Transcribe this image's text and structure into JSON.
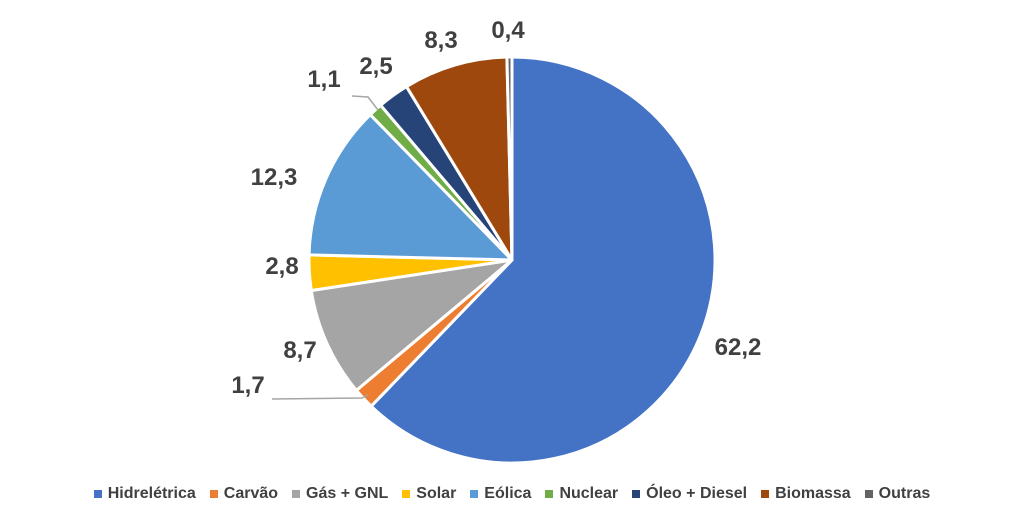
{
  "chart_data": {
    "type": "pie",
    "title": "",
    "decimal_separator": ",",
    "slices": [
      {
        "name": "Hidrelétrica",
        "value": 62.2,
        "label": "62,2",
        "color": "#4472C4"
      },
      {
        "name": "Carvão",
        "value": 1.7,
        "label": "1,7",
        "color": "#ED7D31"
      },
      {
        "name": "Gás + GNL",
        "value": 8.7,
        "label": "8,7",
        "color": "#A5A5A5"
      },
      {
        "name": "Solar",
        "value": 2.8,
        "label": "2,8",
        "color": "#FFC000"
      },
      {
        "name": "Eólica",
        "value": 12.3,
        "label": "12,3",
        "color": "#5B9BD5"
      },
      {
        "name": "Nuclear",
        "value": 1.1,
        "label": "1,1",
        "color": "#70AD47"
      },
      {
        "name": "Óleo + Diesel",
        "value": 2.5,
        "label": "2,5",
        "color": "#264478"
      },
      {
        "name": "Biomassa",
        "value": 8.3,
        "label": "8,3",
        "color": "#9E480E"
      },
      {
        "name": "Outras",
        "value": 0.4,
        "label": "0,4",
        "color": "#636363"
      }
    ],
    "legend_position": "bottom"
  }
}
